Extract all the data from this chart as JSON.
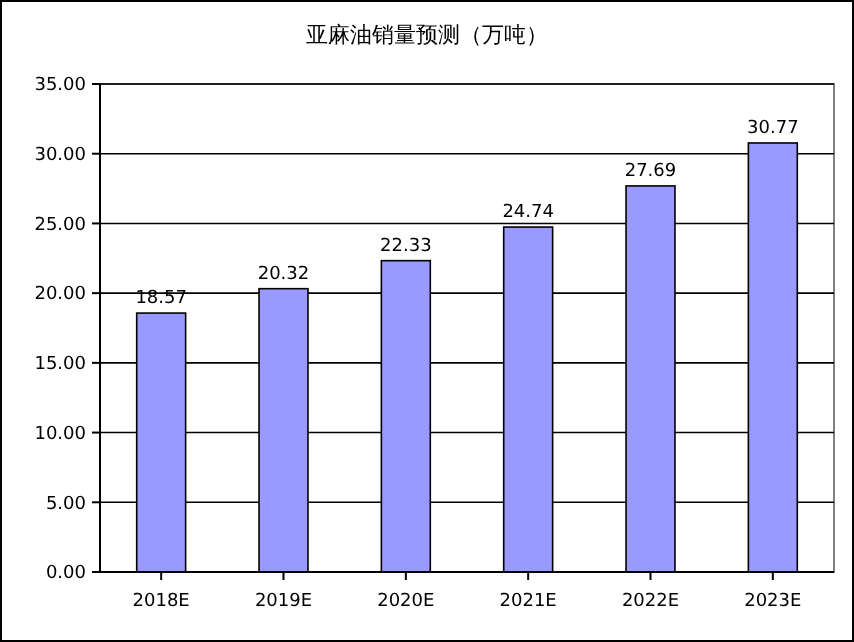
{
  "chart_data": {
    "type": "bar",
    "title": "亚麻油销量预测（万吨）",
    "categories": [
      "2018E",
      "2019E",
      "2020E",
      "2021E",
      "2022E",
      "2023E"
    ],
    "values": [
      18.57,
      20.32,
      22.33,
      24.74,
      27.69,
      30.77
    ],
    "color": "#9999ff",
    "ylim": [
      0,
      35
    ],
    "yticks": [
      {
        "value": 0,
        "label": "0.00"
      },
      {
        "value": 5,
        "label": "5.00"
      },
      {
        "value": 10,
        "label": "10.00"
      },
      {
        "value": 15,
        "label": "15.00"
      },
      {
        "value": 20,
        "label": "20.00"
      },
      {
        "value": 25,
        "label": "25.00"
      },
      {
        "value": 30,
        "label": "30.00"
      },
      {
        "value": 35,
        "label": "35.00"
      }
    ],
    "grid": "y",
    "data_labels": true
  }
}
